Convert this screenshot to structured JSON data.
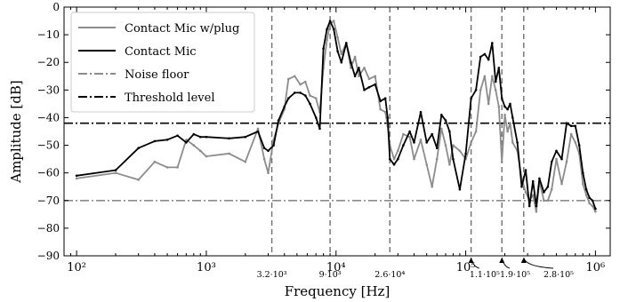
{
  "chart_data": {
    "type": "line",
    "title": "",
    "xlabel": "Frequency [Hz]",
    "ylabel": "Amplitude [dB]",
    "x_scale": "log",
    "xlim": [
      80,
      1300000
    ],
    "ylim": [
      -90,
      0
    ],
    "grid": false,
    "legend_position": "top-left",
    "xticks": [
      {
        "value": 100,
        "label": "10²"
      },
      {
        "value": 1000,
        "label": "10³"
      },
      {
        "value": 10000,
        "label": "10⁴"
      },
      {
        "value": 100000,
        "label": "10⁵"
      },
      {
        "value": 1000000,
        "label": "10⁶"
      }
    ],
    "yticks": [
      0,
      -10,
      -20,
      -30,
      -40,
      -50,
      -60,
      -70,
      -80,
      -90
    ],
    "ytick_labels": [
      "0",
      "−10",
      "−20",
      "−30",
      "−40",
      "−50",
      "−60",
      "−70",
      "−80",
      "−90"
    ],
    "series": [
      {
        "name": "Contact Mic w/plug",
        "color": "#8c8c8c",
        "style": "solid",
        "points": [
          [
            100,
            -62
          ],
          [
            200,
            -60
          ],
          [
            300,
            -62.5
          ],
          [
            400,
            -56
          ],
          [
            500,
            -58
          ],
          [
            600,
            -58
          ],
          [
            700,
            -48
          ],
          [
            800,
            -50
          ],
          [
            900,
            -52
          ],
          [
            1000,
            -54
          ],
          [
            1500,
            -53
          ],
          [
            2000,
            -56
          ],
          [
            2500,
            -44
          ],
          [
            2800,
            -55
          ],
          [
            3000,
            -60
          ],
          [
            3300,
            -48
          ],
          [
            3600,
            -42
          ],
          [
            4000,
            -37
          ],
          [
            4300,
            -26
          ],
          [
            4800,
            -25
          ],
          [
            5300,
            -28
          ],
          [
            5800,
            -27
          ],
          [
            6300,
            -32
          ],
          [
            7000,
            -33
          ],
          [
            7500,
            -38
          ],
          [
            8000,
            -22
          ],
          [
            8500,
            -12
          ],
          [
            9000,
            -6
          ],
          [
            9600,
            -5
          ],
          [
            10300,
            -11
          ],
          [
            11000,
            -17
          ],
          [
            12000,
            -13
          ],
          [
            13000,
            -22
          ],
          [
            14000,
            -18
          ],
          [
            15000,
            -25
          ],
          [
            16500,
            -22
          ],
          [
            18000,
            -26
          ],
          [
            20000,
            -25
          ],
          [
            22000,
            -37
          ],
          [
            24000,
            -38
          ],
          [
            25000,
            -43
          ],
          [
            26000,
            -50
          ],
          [
            28000,
            -55
          ],
          [
            30000,
            -52
          ],
          [
            33000,
            -46
          ],
          [
            37000,
            -47
          ],
          [
            40000,
            -55
          ],
          [
            45000,
            -48
          ],
          [
            50000,
            -57
          ],
          [
            55000,
            -65
          ],
          [
            60000,
            -55
          ],
          [
            65000,
            -44
          ],
          [
            70000,
            -50
          ],
          [
            75000,
            -57
          ],
          [
            80000,
            -50
          ],
          [
            90000,
            -52
          ],
          [
            100000,
            -55
          ],
          [
            110000,
            -49
          ],
          [
            120000,
            -45
          ],
          [
            130000,
            -30
          ],
          [
            140000,
            -25
          ],
          [
            150000,
            -35
          ],
          [
            160000,
            -25
          ],
          [
            170000,
            -30
          ],
          [
            180000,
            -36
          ],
          [
            190000,
            -56
          ],
          [
            200000,
            -39
          ],
          [
            210000,
            -45
          ],
          [
            220000,
            -42
          ],
          [
            230000,
            -49
          ],
          [
            250000,
            -52
          ],
          [
            270000,
            -62
          ],
          [
            290000,
            -67
          ],
          [
            310000,
            -70
          ],
          [
            330000,
            -68
          ],
          [
            350000,
            -74
          ],
          [
            370000,
            -63
          ],
          [
            400000,
            -70
          ],
          [
            430000,
            -70
          ],
          [
            460000,
            -66
          ],
          [
            500000,
            -55
          ],
          [
            550000,
            -64
          ],
          [
            600000,
            -56
          ],
          [
            650000,
            -46
          ],
          [
            700000,
            -49
          ],
          [
            750000,
            -53
          ],
          [
            800000,
            -64
          ],
          [
            850000,
            -68
          ],
          [
            900000,
            -71
          ],
          [
            950000,
            -72
          ],
          [
            1000000,
            -74
          ]
        ]
      },
      {
        "name": "Contact Mic",
        "color": "#000000",
        "style": "solid",
        "points": [
          [
            100,
            -61
          ],
          [
            200,
            -59
          ],
          [
            300,
            -51
          ],
          [
            400,
            -48.5
          ],
          [
            500,
            -48
          ],
          [
            600,
            -46.5
          ],
          [
            700,
            -49
          ],
          [
            800,
            -46
          ],
          [
            900,
            -47
          ],
          [
            1000,
            -47
          ],
          [
            1500,
            -47.5
          ],
          [
            2000,
            -47
          ],
          [
            2500,
            -45
          ],
          [
            2800,
            -51
          ],
          [
            3000,
            -52
          ],
          [
            3300,
            -50
          ],
          [
            3600,
            -41
          ],
          [
            4000,
            -36
          ],
          [
            4300,
            -33
          ],
          [
            4800,
            -31
          ],
          [
            5300,
            -31
          ],
          [
            5800,
            -32
          ],
          [
            6300,
            -35
          ],
          [
            7000,
            -40
          ],
          [
            7500,
            -44
          ],
          [
            8000,
            -15
          ],
          [
            8500,
            -8
          ],
          [
            9000,
            -5
          ],
          [
            9600,
            -8
          ],
          [
            10300,
            -16
          ],
          [
            11000,
            -20
          ],
          [
            12000,
            -13
          ],
          [
            13000,
            -20
          ],
          [
            14000,
            -25
          ],
          [
            15000,
            -22
          ],
          [
            16500,
            -30
          ],
          [
            18000,
            -29
          ],
          [
            20000,
            -28
          ],
          [
            22000,
            -34
          ],
          [
            24000,
            -33
          ],
          [
            25000,
            -40
          ],
          [
            26000,
            -55
          ],
          [
            28000,
            -57
          ],
          [
            30000,
            -55
          ],
          [
            33000,
            -50
          ],
          [
            37000,
            -45
          ],
          [
            40000,
            -49
          ],
          [
            45000,
            -38
          ],
          [
            50000,
            -49
          ],
          [
            55000,
            -46
          ],
          [
            60000,
            -51
          ],
          [
            65000,
            -39
          ],
          [
            70000,
            -41
          ],
          [
            75000,
            -45
          ],
          [
            80000,
            -55
          ],
          [
            90000,
            -66
          ],
          [
            100000,
            -53
          ],
          [
            110000,
            -33
          ],
          [
            120000,
            -30
          ],
          [
            130000,
            -18
          ],
          [
            140000,
            -17
          ],
          [
            150000,
            -19
          ],
          [
            160000,
            -13
          ],
          [
            170000,
            -27
          ],
          [
            180000,
            -22
          ],
          [
            190000,
            -33
          ],
          [
            200000,
            -36
          ],
          [
            210000,
            -37
          ],
          [
            220000,
            -35
          ],
          [
            230000,
            -40
          ],
          [
            250000,
            -49
          ],
          [
            270000,
            -65
          ],
          [
            290000,
            -59
          ],
          [
            310000,
            -72
          ],
          [
            330000,
            -63
          ],
          [
            350000,
            -72
          ],
          [
            370000,
            -62
          ],
          [
            400000,
            -67
          ],
          [
            430000,
            -65
          ],
          [
            460000,
            -56
          ],
          [
            500000,
            -52
          ],
          [
            550000,
            -55
          ],
          [
            600000,
            -42
          ],
          [
            650000,
            -43
          ],
          [
            700000,
            -43
          ],
          [
            750000,
            -50
          ],
          [
            800000,
            -60
          ],
          [
            850000,
            -66
          ],
          [
            900000,
            -69
          ],
          [
            950000,
            -70
          ],
          [
            1000000,
            -73
          ]
        ]
      },
      {
        "name": "Noise floor",
        "color": "#8c8c8c",
        "style": "dashdot",
        "y": -70
      },
      {
        "name": "Threshold level",
        "color": "#000000",
        "style": "dashdot",
        "y": -42
      }
    ],
    "vlines": [
      {
        "x": 3200,
        "label": "3.2·10³",
        "label_x": 3200
      },
      {
        "x": 9000,
        "label": "9·10³",
        "label_x": 9000
      },
      {
        "x": 26000,
        "label": "2.6·10⁴",
        "label_x": 26000
      },
      {
        "x": 110000,
        "label": "1.1·10⁵",
        "label_x": 140000,
        "arrow": true
      },
      {
        "x": 190000,
        "label": "1.9·10⁵",
        "label_x": 240000,
        "arrow": true
      },
      {
        "x": 280000,
        "label": "2.8·10⁵",
        "label_x": 520000,
        "arrow": true
      }
    ]
  }
}
